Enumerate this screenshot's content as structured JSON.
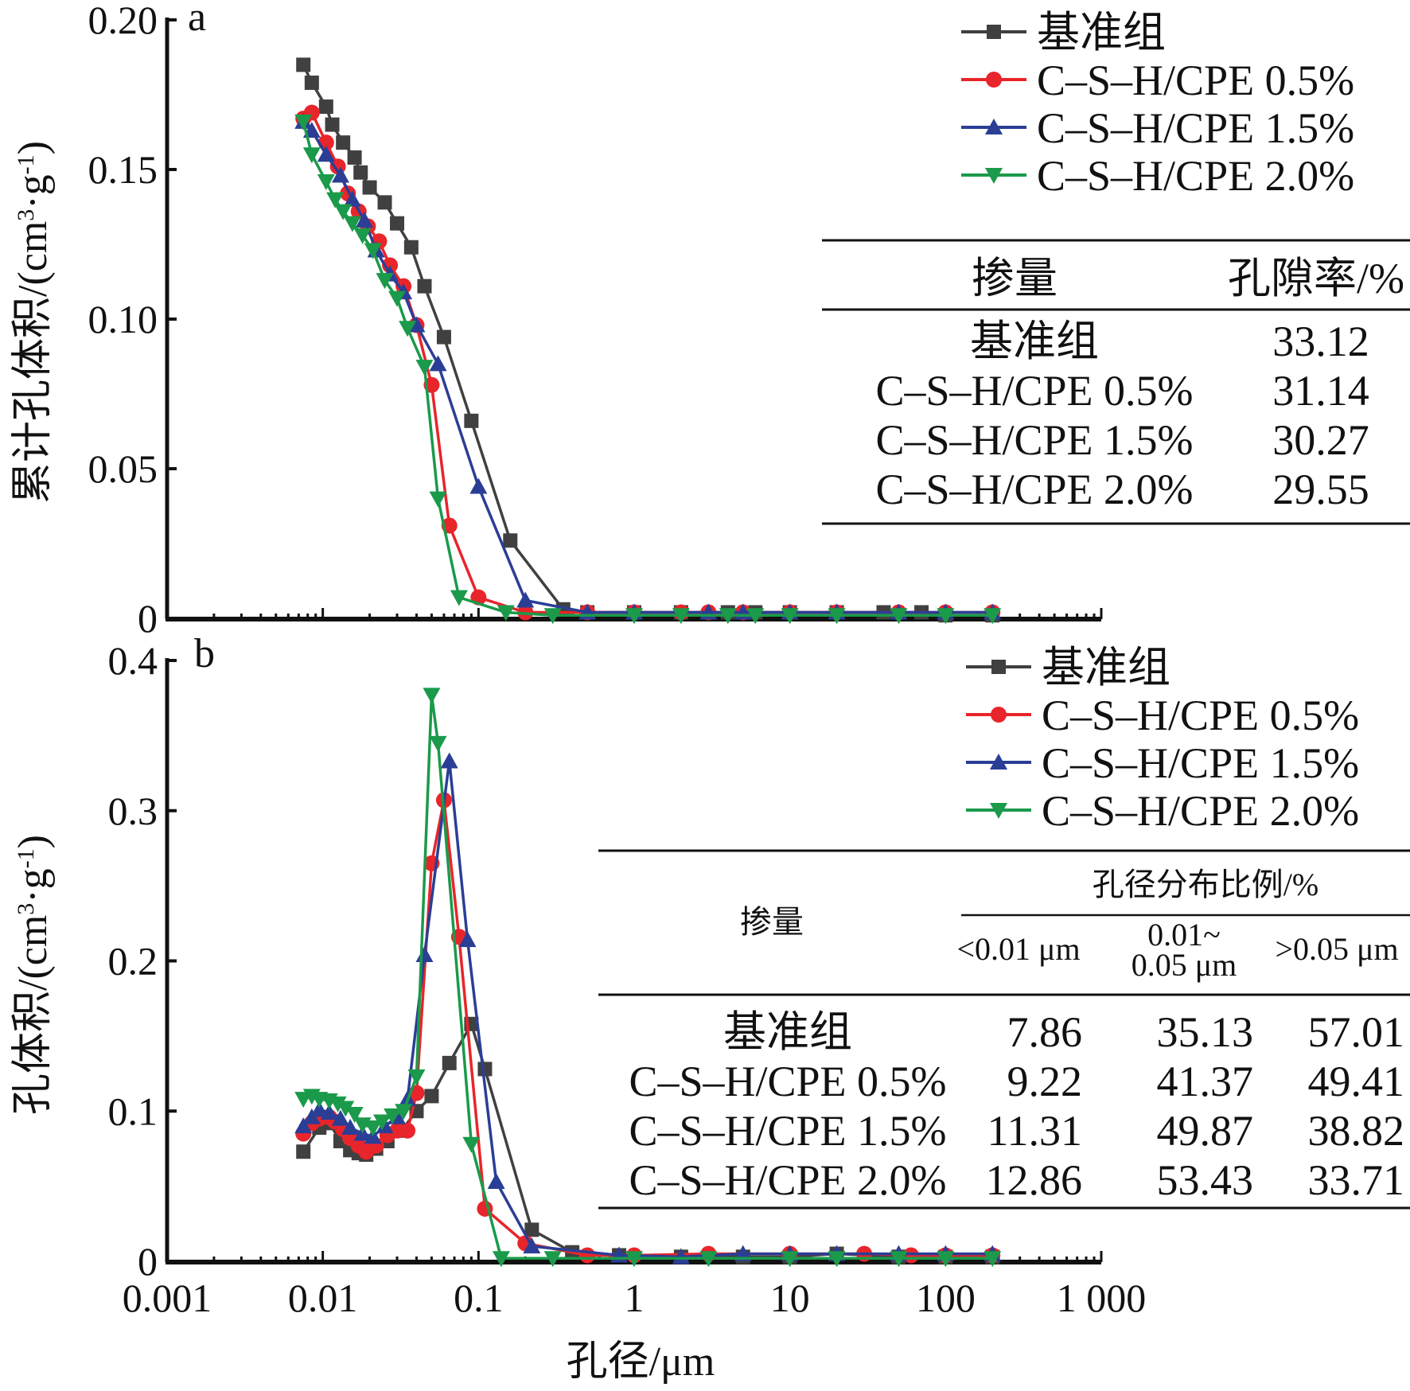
{
  "chart_data": [
    {
      "type": "line",
      "panel_label": "a",
      "xscale": "log",
      "xlim": [
        0.001,
        1000
      ],
      "ylim": [
        0,
        0.2
      ],
      "yticks": [
        "0",
        "0.05",
        "0.10",
        "0.15",
        "0.20"
      ],
      "ytick_values": [
        0,
        0.05,
        0.1,
        0.15,
        0.2
      ],
      "ylabel": "累计孔体积/(cm³·g⁻¹)",
      "ylabel_parts": {
        "main": "累计孔体积/(cm",
        "sup1": "3",
        "mid": "·g",
        "sup2": "-1",
        "end": ")"
      },
      "legend": "top-right",
      "series": [
        {
          "name": "基准组",
          "color": "#404040",
          "marker": "square",
          "x": [
            0.0075,
            0.0085,
            0.0105,
            0.0115,
            0.0135,
            0.016,
            0.0175,
            0.02,
            0.025,
            0.03,
            0.037,
            0.045,
            0.06,
            0.09,
            0.16,
            0.35,
            0.5,
            1,
            2,
            4,
            6,
            10,
            20,
            40,
            70,
            100,
            200
          ],
          "y": [
            0.185,
            0.179,
            0.171,
            0.165,
            0.159,
            0.154,
            0.149,
            0.144,
            0.139,
            0.132,
            0.124,
            0.111,
            0.094,
            0.066,
            0.026,
            0.003,
            0.002,
            0.002,
            0.002,
            0.002,
            0.002,
            0.002,
            0.002,
            0.002,
            0.002,
            0.001,
            0.001
          ]
        },
        {
          "name": "C–S–H/CPE 0.5%",
          "color": "#e8252a",
          "marker": "circle",
          "x": [
            0.0075,
            0.0085,
            0.0105,
            0.0125,
            0.0145,
            0.017,
            0.0195,
            0.023,
            0.027,
            0.033,
            0.04,
            0.05,
            0.065,
            0.1,
            0.2,
            0.5,
            1,
            2,
            3,
            5,
            10,
            20,
            50,
            100,
            200
          ],
          "y": [
            0.167,
            0.169,
            0.159,
            0.151,
            0.142,
            0.136,
            0.131,
            0.126,
            0.118,
            0.111,
            0.098,
            0.078,
            0.031,
            0.007,
            0.002,
            0.002,
            0.002,
            0.002,
            0.002,
            0.002,
            0.002,
            0.002,
            0.002,
            0.002,
            0.002
          ]
        },
        {
          "name": "C–S–H/CPE 1.5%",
          "color": "#2b3e96",
          "marker": "triangle-up",
          "x": [
            0.0075,
            0.0085,
            0.0105,
            0.013,
            0.0155,
            0.0185,
            0.022,
            0.027,
            0.033,
            0.04,
            0.055,
            0.1,
            0.2,
            0.5,
            1,
            3,
            5,
            10,
            20,
            50,
            100,
            200
          ],
          "y": [
            0.166,
            0.163,
            0.155,
            0.148,
            0.14,
            0.133,
            0.123,
            0.115,
            0.109,
            0.098,
            0.085,
            0.044,
            0.006,
            0.002,
            0.002,
            0.002,
            0.002,
            0.002,
            0.002,
            0.002,
            0.002,
            0.002
          ]
        },
        {
          "name": "C–S–H/CPE 2.0%",
          "color": "#1a9a4a",
          "marker": "triangle-down",
          "x": [
            0.0075,
            0.0085,
            0.0105,
            0.012,
            0.0135,
            0.0155,
            0.018,
            0.021,
            0.025,
            0.03,
            0.035,
            0.045,
            0.055,
            0.075,
            0.15,
            0.3,
            1,
            2,
            4,
            6,
            10,
            20,
            50,
            100,
            200
          ],
          "y": [
            0.166,
            0.155,
            0.146,
            0.14,
            0.136,
            0.132,
            0.128,
            0.123,
            0.113,
            0.107,
            0.097,
            0.084,
            0.04,
            0.007,
            0.002,
            0.001,
            0.001,
            0.001,
            0.001,
            0.001,
            0.001,
            0.001,
            0.001,
            0.001,
            0.001
          ]
        }
      ],
      "inset_table": {
        "headers": [
          "掺量",
          "孔隙率/%"
        ],
        "rows": [
          [
            "基准组",
            "33.12"
          ],
          [
            "C–S–H/CPE 0.5%",
            "31.14"
          ],
          [
            "C–S–H/CPE 1.5%",
            "30.27"
          ],
          [
            "C–S–H/CPE 2.0%",
            "29.55"
          ]
        ]
      }
    },
    {
      "type": "line",
      "panel_label": "b",
      "xscale": "log",
      "xlim": [
        0.001,
        1000
      ],
      "ylim": [
        0,
        0.4
      ],
      "xticks": [
        "0.001",
        "0.01",
        "0.1",
        "1",
        "10",
        "100",
        "1 000"
      ],
      "xtick_values": [
        0.001,
        0.01,
        0.1,
        1,
        10,
        100,
        1000
      ],
      "yticks": [
        "0",
        "0.1",
        "0.2",
        "0.3",
        "0.4"
      ],
      "ytick_values": [
        0,
        0.1,
        0.2,
        0.3,
        0.4
      ],
      "xlabel": "孔径/μm",
      "ylabel": "孔体积/(cm³·g⁻¹)",
      "ylabel_parts": {
        "main": "孔体积/(cm",
        "sup1": "3",
        "mid": "·g",
        "sup2": "-1",
        "end": ")"
      },
      "legend": "top-right",
      "series": [
        {
          "name": "基准组",
          "color": "#404040",
          "marker": "square",
          "x": [
            0.0075,
            0.0095,
            0.011,
            0.013,
            0.015,
            0.017,
            0.019,
            0.022,
            0.026,
            0.032,
            0.04,
            0.05,
            0.065,
            0.09,
            0.11,
            0.22,
            0.4,
            0.8,
            2,
            5,
            10,
            20,
            50,
            100,
            200
          ],
          "y": [
            0.073,
            0.089,
            0.092,
            0.08,
            0.074,
            0.072,
            0.071,
            0.075,
            0.08,
            0.087,
            0.1,
            0.11,
            0.132,
            0.158,
            0.128,
            0.021,
            0.006,
            0.004,
            0.003,
            0.003,
            0.003,
            0.005,
            0.003,
            0.003,
            0.003
          ]
        },
        {
          "name": "C–S–H/CPE 0.5%",
          "color": "#e8252a",
          "marker": "circle",
          "x": [
            0.0075,
            0.0085,
            0.0095,
            0.011,
            0.012,
            0.0135,
            0.015,
            0.017,
            0.019,
            0.022,
            0.026,
            0.03,
            0.035,
            0.04,
            0.05,
            0.06,
            0.075,
            0.11,
            0.2,
            0.5,
            1,
            3,
            10,
            30,
            60,
            100,
            200
          ],
          "y": [
            0.085,
            0.092,
            0.095,
            0.096,
            0.093,
            0.088,
            0.082,
            0.077,
            0.073,
            0.077,
            0.084,
            0.087,
            0.087,
            0.112,
            0.265,
            0.307,
            0.216,
            0.035,
            0.012,
            0.004,
            0.004,
            0.005,
            0.005,
            0.005,
            0.004,
            0.004,
            0.004
          ]
        },
        {
          "name": "C–S–H/CPE 1.5%",
          "color": "#2b3e96",
          "marker": "triangle-up",
          "x": [
            0.0075,
            0.0085,
            0.0095,
            0.011,
            0.013,
            0.015,
            0.018,
            0.021,
            0.025,
            0.03,
            0.035,
            0.045,
            0.065,
            0.085,
            0.13,
            0.22,
            0.8,
            2,
            5,
            10,
            20,
            50,
            100,
            200
          ],
          "y": [
            0.09,
            0.096,
            0.101,
            0.099,
            0.095,
            0.089,
            0.085,
            0.083,
            0.09,
            0.096,
            0.108,
            0.204,
            0.333,
            0.214,
            0.053,
            0.01,
            0.004,
            0.003,
            0.005,
            0.005,
            0.005,
            0.005,
            0.005,
            0.005
          ]
        },
        {
          "name": "C–S–H/CPE 2.0%",
          "color": "#1a9a4a",
          "marker": "triangle-down",
          "x": [
            0.0075,
            0.0085,
            0.0095,
            0.011,
            0.0125,
            0.014,
            0.016,
            0.018,
            0.021,
            0.024,
            0.028,
            0.033,
            0.04,
            0.05,
            0.055,
            0.09,
            0.14,
            0.3,
            1,
            3,
            10,
            20,
            50,
            100,
            200
          ],
          "y": [
            0.108,
            0.11,
            0.108,
            0.107,
            0.105,
            0.102,
            0.098,
            0.091,
            0.089,
            0.093,
            0.097,
            0.1,
            0.123,
            0.377,
            0.345,
            0.078,
            0.002,
            0.002,
            0.002,
            0.002,
            0.002,
            0.002,
            0.002,
            0.002,
            0.002
          ]
        }
      ],
      "inset_table": {
        "header_group": "孔径分布比例/%",
        "row_header": "掺量",
        "subheaders": [
          "<0.01 μm",
          "0.01~",
          "0.05 μm",
          ">0.05 μm"
        ],
        "rows": [
          [
            "基准组",
            "7.86",
            "35.13",
            "57.01"
          ],
          [
            "C–S–H/CPE 0.5%",
            "9.22",
            "41.37",
            "49.41"
          ],
          [
            "C–S–H/CPE 1.5%",
            "11.31",
            "49.87",
            "38.82"
          ],
          [
            "C–S–H/CPE 2.0%",
            "12.86",
            "53.43",
            "33.71"
          ]
        ]
      }
    }
  ]
}
